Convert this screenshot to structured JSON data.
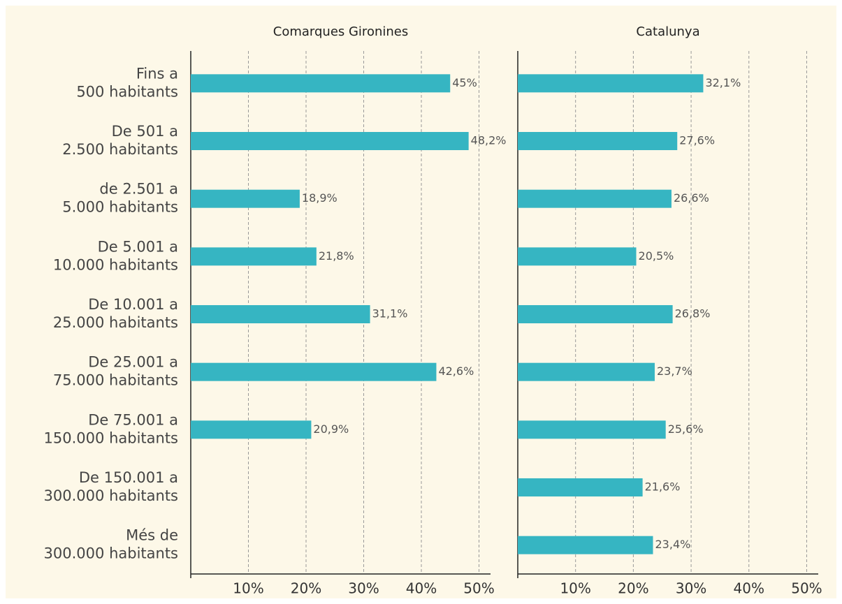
{
  "chart_data": {
    "type": "bar",
    "orientation": "horizontal",
    "categories": [
      "Fins a\n500 habitants",
      "De 501 a\n2.500 habitants",
      "de 2.501 a\n5.000 habitants",
      "De 5.001 a\n10.000 habitants",
      "De 10.001 a\n25.000 habitants",
      "De 25.001 a\n75.000 habitants",
      "De 75.001 a\n150.000 habitants",
      "De 150.001 a\n300.000 habitants",
      "Més de\n300.000 habitants"
    ],
    "series": [
      {
        "name": "Comarques Gironines",
        "color": "#36b5c2",
        "values": [
          45,
          48.2,
          18.9,
          21.8,
          31.1,
          42.6,
          20.9,
          null,
          null
        ],
        "value_labels": [
          "45%",
          "48,2%",
          "18,9%",
          "21,8%",
          "31,1%",
          "42,6%",
          "20,9%",
          null,
          null
        ]
      },
      {
        "name": "Catalunya",
        "color": "#36b5c2",
        "values": [
          32.1,
          27.6,
          26.6,
          20.5,
          26.8,
          23.7,
          25.6,
          21.6,
          23.4
        ],
        "value_labels": [
          "32,1%",
          "27,6%",
          "26,6%",
          "20,5%",
          "26,8%",
          "23,7%",
          "25,6%",
          "21,6%",
          "23,4%"
        ]
      }
    ],
    "xlim": [
      0,
      52
    ],
    "xticks": [
      {
        "value": 10,
        "label": "10%"
      },
      {
        "value": 20,
        "label": "20%"
      },
      {
        "value": 30,
        "label": "30%"
      },
      {
        "value": 40,
        "label": "40%"
      },
      {
        "value": 50,
        "label": "50%"
      }
    ],
    "grid": true
  }
}
